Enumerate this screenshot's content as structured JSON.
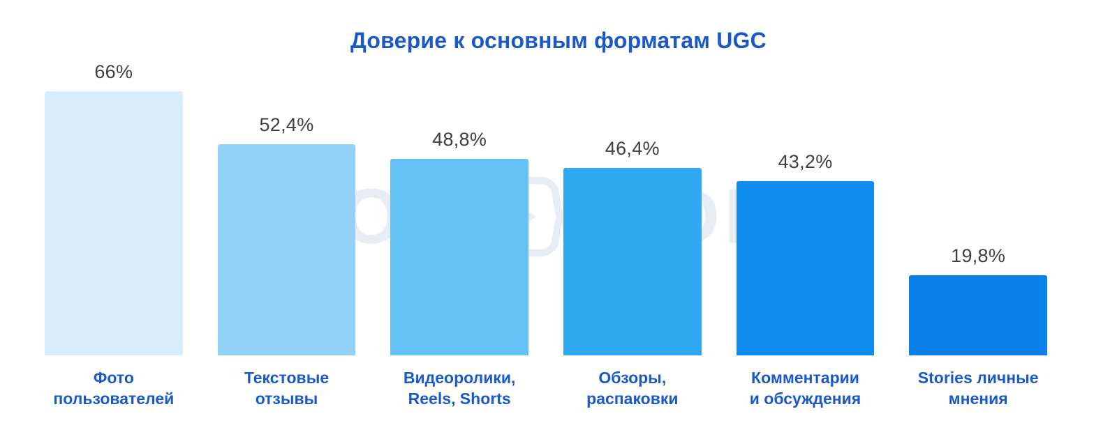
{
  "title": "Доверие к основным форматам UGC",
  "colors": {
    "accent": "#1b59c8",
    "value_label": "#3d3f42",
    "background": "#ffffff",
    "watermark": "rgba(226,232,240,0.78)"
  },
  "watermark": {
    "left_text": "MOE",
    "right_text": "VIDEO",
    "icon": "play-icon"
  },
  "chart_data": {
    "type": "bar",
    "title": "Доверие к основным форматам UGC",
    "categories": [
      "Фото\nпользователей",
      "Текстовые\nотзывы",
      "Видеоролики,\nReels, Shorts",
      "Обзоры,\nраспаковки",
      "Комментарии\nи обсуждения",
      "Stories личные\nмнения"
    ],
    "values": [
      66,
      52.4,
      48.8,
      46.4,
      43.2,
      19.8
    ],
    "value_labels": [
      "66%",
      "52,4%",
      "48,8%",
      "46,4%",
      "43,2%",
      "19,8%"
    ],
    "bar_colors": [
      "#D7EDFD",
      "#92D2F9",
      "#64C1F6",
      "#2FA9F2",
      "#0E8DEE",
      "#0B80EA"
    ],
    "xlabel": "",
    "ylabel": "",
    "ylim": [
      0,
      66
    ],
    "grid": false,
    "legend": false
  }
}
